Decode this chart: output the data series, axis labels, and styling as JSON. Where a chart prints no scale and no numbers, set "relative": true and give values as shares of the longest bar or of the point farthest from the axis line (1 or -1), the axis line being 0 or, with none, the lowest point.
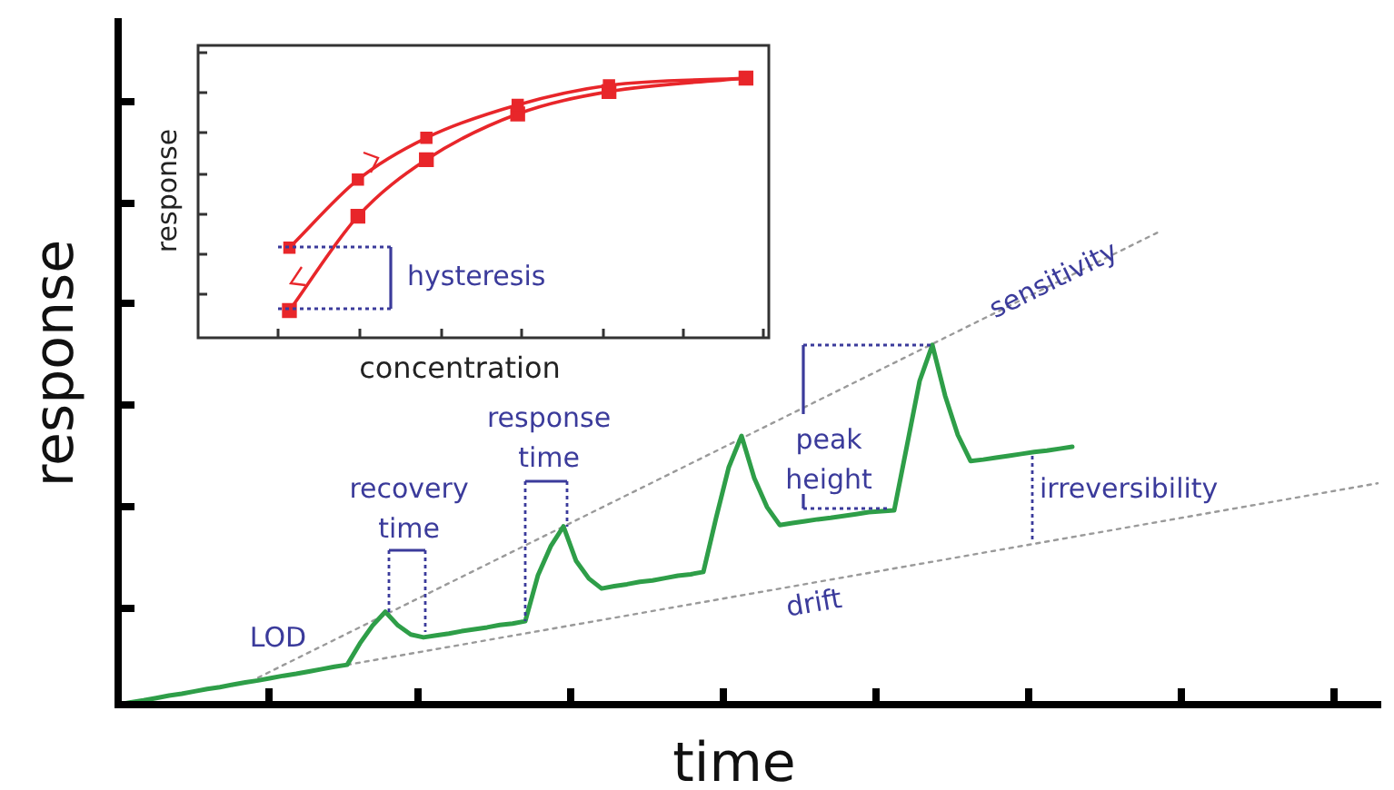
{
  "chart_data": [
    {
      "type": "line",
      "relative": true,
      "xlabel": "time",
      "ylabel": "response",
      "marker": "none",
      "categories": [
        null,
        null,
        null,
        null,
        null,
        null,
        null,
        null,
        null,
        null,
        null,
        null,
        null,
        null,
        null,
        null,
        null,
        null,
        null,
        null,
        null,
        null,
        null,
        null,
        null,
        null,
        null,
        null,
        null,
        null,
        null,
        null,
        null,
        null,
        null,
        null,
        null,
        null,
        null,
        null,
        null,
        null,
        null,
        null,
        null,
        null,
        null,
        null,
        null,
        null,
        null,
        null,
        null,
        null,
        null,
        null,
        null,
        null,
        null,
        null,
        null,
        null,
        null,
        null,
        null,
        null,
        null,
        null,
        null,
        null,
        null,
        null,
        null,
        null,
        null,
        null,
        null,
        null,
        null,
        null,
        null,
        null,
        null,
        null,
        null,
        null,
        null,
        null,
        null,
        null,
        null,
        null,
        null,
        null,
        null,
        null,
        null,
        null,
        null,
        null
      ],
      "series": [
        {
          "color": "#2e9e48",
          "line_style": "solid",
          "values": [
            0,
            0.005,
            0.009,
            0.014,
            0.019,
            0.023,
            0.028,
            0.033,
            0.037,
            0.042,
            0.047,
            0.051,
            0.056,
            0.061,
            0.065,
            0.07,
            0.075,
            0.08,
            0.084,
            0.129,
            0.167,
            0.196,
            0.167,
            0.148,
            0.142,
            0.146,
            0.15,
            0.155,
            0.159,
            0.163,
            0.168,
            0.171,
            0.176,
            0.273,
            0.334,
            0.376,
            0.303,
            0.266,
            0.245,
            0.25,
            0.254,
            0.259,
            0.262,
            0.267,
            0.272,
            0.275,
            0.28,
            0.394,
            0.501,
            0.567,
            0.478,
            0.417,
            0.379,
            0.383,
            0.387,
            0.391,
            0.394,
            0.398,
            0.402,
            0.406,
            0.408,
            0.41,
            0.546,
            0.683,
            0.759,
            0.652,
            0.569,
            0.514,
            0.517,
            0.521,
            0.525,
            0.529,
            0.533,
            0.536,
            0.54,
            0.544,
            null,
            null,
            null,
            null,
            null,
            null,
            null,
            null,
            null,
            null,
            null,
            null,
            null,
            null,
            null,
            null,
            null,
            null,
            null,
            null,
            null,
            null,
            null,
            null
          ]
        },
        {
          "name": "sensitivity",
          "color": "#9a9a9a",
          "line_style": "dotted",
          "values": [
            null,
            null,
            null,
            null,
            null,
            null,
            null,
            null,
            null,
            null,
            null,
            0.057,
            null,
            null,
            null,
            null,
            null,
            null,
            null,
            null,
            null,
            null,
            null,
            null,
            null,
            null,
            null,
            null,
            null,
            null,
            null,
            null,
            null,
            null,
            null,
            null,
            null,
            null,
            null,
            null,
            null,
            null,
            null,
            null,
            null,
            null,
            null,
            null,
            null,
            null,
            null,
            null,
            null,
            null,
            null,
            null,
            null,
            null,
            null,
            null,
            null,
            null,
            null,
            null,
            null,
            null,
            null,
            null,
            null,
            null,
            null,
            null,
            null,
            null,
            null,
            null,
            null,
            null,
            null,
            null,
            null,
            null,
            1,
            null,
            null,
            null,
            null,
            null,
            null,
            null,
            null,
            null,
            null,
            null,
            null,
            null,
            null,
            null,
            null,
            null
          ]
        },
        {
          "name": "drift",
          "color": "#9a9a9a",
          "line_style": "dotted",
          "values": [
            null,
            null,
            null,
            null,
            null,
            null,
            null,
            null,
            null,
            null,
            null,
            null,
            null,
            null,
            null,
            null,
            null,
            null,
            0.084,
            null,
            null,
            null,
            null,
            null,
            null,
            null,
            null,
            null,
            null,
            null,
            null,
            null,
            null,
            null,
            null,
            null,
            null,
            null,
            null,
            null,
            null,
            null,
            null,
            null,
            null,
            null,
            null,
            null,
            null,
            null,
            null,
            null,
            null,
            null,
            null,
            null,
            null,
            null,
            null,
            null,
            null,
            null,
            null,
            null,
            null,
            null,
            null,
            null,
            null,
            null,
            null,
            null,
            null,
            null,
            null,
            null,
            null,
            null,
            null,
            null,
            null,
            null,
            null,
            null,
            null,
            null,
            null,
            null,
            null,
            null,
            null,
            null,
            null,
            null,
            null,
            null,
            null,
            null,
            null,
            0.467
          ]
        }
      ],
      "annotations": [
        "LOD",
        "recovery time",
        "response time",
        "peak height",
        "irreversibility"
      ]
    },
    {
      "type": "line",
      "relative": true,
      "xlabel": "concentration",
      "ylabel": "response",
      "marker": "square",
      "categories": [
        null,
        null,
        null,
        null,
        null,
        null,
        null,
        null,
        null,
        null,
        null,
        null,
        null,
        null,
        null,
        null,
        null,
        null,
        null,
        null,
        null,
        null,
        null,
        null,
        null,
        null
      ],
      "series": [
        {
          "color": "#e8262a",
          "line_style": "solid",
          "values": [
            null,
            null,
            null,
            null,
            0.347,
            null,
            null,
            0.609,
            null,
            null,
            0.77,
            null,
            null,
            null,
            0.897,
            null,
            null,
            null,
            0.972,
            null,
            null,
            null,
            null,
            null,
            1,
            null
          ]
        },
        {
          "color": "#e8262a",
          "line_style": "solid",
          "values": [
            null,
            null,
            null,
            null,
            0.105,
            null,
            null,
            0.468,
            null,
            null,
            0.686,
            null,
            null,
            null,
            0.862,
            null,
            null,
            null,
            0.948,
            null,
            null,
            null,
            null,
            null,
            1,
            null
          ]
        }
      ],
      "annotations": [
        "hysteresis"
      ]
    }
  ]
}
